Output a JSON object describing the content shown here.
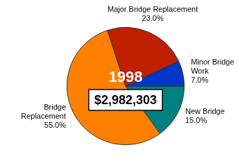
{
  "chart_data": {
    "type": "pie",
    "title": "1998",
    "subtitle": "$2,982,303",
    "categories": [
      "New Bridge",
      "Bridge Replacement",
      "Major Bridge Replacement",
      "Minor Bridge Work"
    ],
    "values": [
      15,
      55,
      23,
      7
    ],
    "value_labels": [
      "15.0%",
      "55.0%",
      "23.0%",
      "7.0%"
    ],
    "colors": [
      "#008080",
      "#ff8000",
      "#c02000",
      "#0038c8"
    ],
    "data_labels": true
  }
}
